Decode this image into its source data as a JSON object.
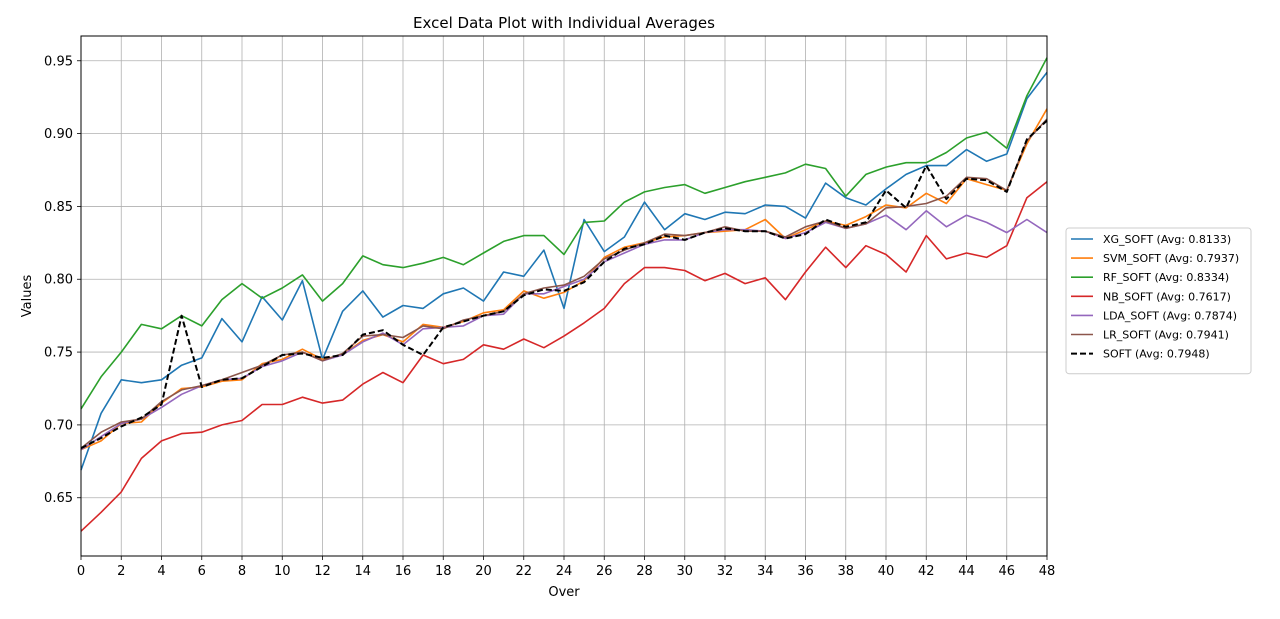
{
  "chart_data": {
    "type": "line",
    "title": "Excel Data Plot with Individual Averages",
    "xlabel": "Over",
    "ylabel": "Values",
    "xlim": [
      0,
      48
    ],
    "ylim": [
      0.61,
      0.967
    ],
    "xticks": [
      0,
      2,
      4,
      6,
      8,
      10,
      12,
      14,
      16,
      18,
      20,
      22,
      24,
      26,
      28,
      30,
      32,
      34,
      36,
      38,
      40,
      42,
      44,
      46,
      48
    ],
    "yticks": [
      0.65,
      0.7,
      0.75,
      0.8,
      0.85,
      0.9,
      0.95
    ],
    "ytick_labels": [
      "0.65",
      "0.70",
      "0.75",
      "0.80",
      "0.85",
      "0.90",
      "0.95"
    ],
    "grid": true,
    "legend_position": "right",
    "series": [
      {
        "name": "XG_SOFT (Avg: 0.8133)",
        "color": "#1f77b4",
        "dash": "solid",
        "values": [
          0.669,
          0.708,
          0.731,
          0.729,
          0.731,
          0.741,
          0.746,
          0.773,
          0.757,
          0.788,
          0.772,
          0.799,
          0.745,
          0.778,
          0.792,
          0.774,
          0.782,
          0.78,
          0.79,
          0.794,
          0.785,
          0.805,
          0.802,
          0.82,
          0.78,
          0.841,
          0.819,
          0.829,
          0.853,
          0.834,
          0.845,
          0.841,
          0.846,
          0.845,
          0.851,
          0.85,
          0.842,
          0.866,
          0.856,
          0.851,
          0.862,
          0.872,
          0.878,
          0.878,
          0.889,
          0.881,
          0.886,
          0.924,
          0.942
        ]
      },
      {
        "name": "SVM_SOFT (Avg: 0.7937)",
        "color": "#ff7f0e",
        "dash": "solid",
        "values": [
          0.683,
          0.689,
          0.701,
          0.702,
          0.715,
          0.725,
          0.726,
          0.73,
          0.731,
          0.742,
          0.745,
          0.752,
          0.745,
          0.748,
          0.758,
          0.762,
          0.757,
          0.769,
          0.767,
          0.771,
          0.777,
          0.779,
          0.792,
          0.787,
          0.791,
          0.799,
          0.815,
          0.822,
          0.825,
          0.829,
          0.83,
          0.832,
          0.833,
          0.834,
          0.841,
          0.828,
          0.834,
          0.84,
          0.837,
          0.843,
          0.851,
          0.849,
          0.859,
          0.852,
          0.869,
          0.865,
          0.861,
          0.893,
          0.917
        ]
      },
      {
        "name": "RF_SOFT (Avg: 0.8334)",
        "color": "#2ca02c",
        "dash": "solid",
        "values": [
          0.711,
          0.733,
          0.75,
          0.769,
          0.766,
          0.775,
          0.768,
          0.786,
          0.797,
          0.787,
          0.794,
          0.803,
          0.785,
          0.797,
          0.816,
          0.81,
          0.808,
          0.811,
          0.815,
          0.81,
          0.818,
          0.826,
          0.83,
          0.83,
          0.817,
          0.839,
          0.84,
          0.853,
          0.86,
          0.863,
          0.865,
          0.859,
          0.863,
          0.867,
          0.87,
          0.873,
          0.879,
          0.876,
          0.857,
          0.872,
          0.877,
          0.88,
          0.88,
          0.887,
          0.897,
          0.901,
          0.89,
          0.926,
          0.952
        ]
      },
      {
        "name": "NB_SOFT (Avg: 0.7617)",
        "color": "#d62728",
        "dash": "solid",
        "values": [
          0.627,
          0.64,
          0.654,
          0.677,
          0.689,
          0.694,
          0.695,
          0.7,
          0.703,
          0.714,
          0.714,
          0.719,
          0.715,
          0.717,
          0.728,
          0.736,
          0.729,
          0.748,
          0.742,
          0.745,
          0.755,
          0.752,
          0.759,
          0.753,
          0.761,
          0.77,
          0.78,
          0.797,
          0.808,
          0.808,
          0.806,
          0.799,
          0.804,
          0.797,
          0.801,
          0.786,
          0.805,
          0.822,
          0.808,
          0.823,
          0.817,
          0.805,
          0.83,
          0.814,
          0.818,
          0.815,
          0.823,
          0.856,
          0.867
        ]
      },
      {
        "name": "LDA_SOFT (Avg: 0.7874)",
        "color": "#9467bd",
        "dash": "solid",
        "values": [
          0.683,
          0.692,
          0.701,
          0.704,
          0.712,
          0.721,
          0.727,
          0.731,
          0.732,
          0.74,
          0.744,
          0.75,
          0.744,
          0.748,
          0.757,
          0.763,
          0.755,
          0.766,
          0.767,
          0.768,
          0.775,
          0.776,
          0.79,
          0.79,
          0.795,
          0.8,
          0.812,
          0.818,
          0.824,
          0.827,
          0.827,
          0.832,
          0.834,
          0.834,
          0.833,
          0.828,
          0.832,
          0.839,
          0.835,
          0.838,
          0.844,
          0.834,
          0.847,
          0.836,
          0.844,
          0.839,
          0.832,
          0.841,
          0.832
        ]
      },
      {
        "name": "LR_SOFT (Avg: 0.7941)",
        "color": "#8c564b",
        "dash": "solid",
        "values": [
          0.684,
          0.695,
          0.702,
          0.704,
          0.716,
          0.724,
          0.727,
          0.731,
          0.736,
          0.741,
          0.748,
          0.75,
          0.744,
          0.749,
          0.761,
          0.762,
          0.76,
          0.768,
          0.766,
          0.772,
          0.775,
          0.778,
          0.79,
          0.794,
          0.796,
          0.802,
          0.814,
          0.82,
          0.825,
          0.831,
          0.83,
          0.832,
          0.836,
          0.833,
          0.833,
          0.829,
          0.836,
          0.84,
          0.835,
          0.838,
          0.849,
          0.85,
          0.852,
          0.857,
          0.87,
          0.869,
          0.861,
          0.895,
          0.91
        ]
      },
      {
        "name": "SOFT (Avg: 0.7948)",
        "color": "#000000",
        "dash": "dashed",
        "values": [
          0.684,
          0.691,
          0.699,
          0.705,
          0.714,
          0.775,
          0.726,
          0.731,
          0.732,
          0.74,
          0.748,
          0.749,
          0.746,
          0.748,
          0.762,
          0.765,
          0.755,
          0.748,
          0.767,
          0.771,
          0.775,
          0.778,
          0.789,
          0.793,
          0.792,
          0.798,
          0.812,
          0.821,
          0.824,
          0.83,
          0.827,
          0.832,
          0.835,
          0.833,
          0.833,
          0.828,
          0.831,
          0.841,
          0.836,
          0.839,
          0.861,
          0.849,
          0.878,
          0.855,
          0.869,
          0.868,
          0.86,
          0.896,
          0.909
        ]
      }
    ]
  }
}
